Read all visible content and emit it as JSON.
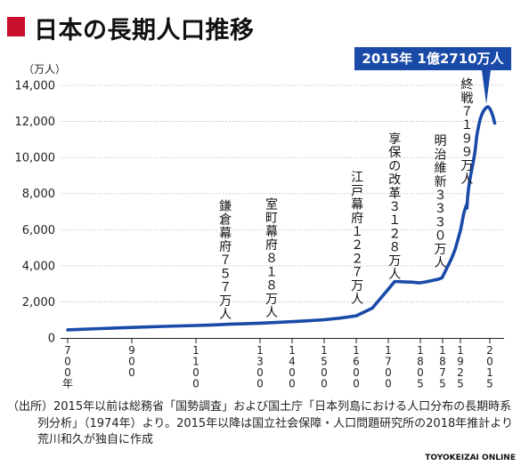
{
  "header": {
    "title": "日本の長期人口推移"
  },
  "chart_data": {
    "type": "line",
    "yunit": "（万人）",
    "ylim": [
      0,
      14000
    ],
    "yticks": [
      0,
      2000,
      4000,
      6000,
      8000,
      10000,
      12000,
      14000
    ],
    "ytick_labels": [
      "0",
      "2,000",
      "4,000",
      "6,000",
      "8,000",
      "10,000",
      "12,000",
      "14,000"
    ],
    "xticks": [
      {
        "year": 700,
        "label": "700年"
      },
      {
        "year": 900,
        "label": "900"
      },
      {
        "year": 1100,
        "label": "1100"
      },
      {
        "year": 1300,
        "label": "1300"
      },
      {
        "year": 1400,
        "label": "1400"
      },
      {
        "year": 1500,
        "label": "1500"
      },
      {
        "year": 1600,
        "label": "1600"
      },
      {
        "year": 1700,
        "label": "1700"
      },
      {
        "year": 1805,
        "label": "1805"
      },
      {
        "year": 1875,
        "label": "1875"
      },
      {
        "year": 1925,
        "label": "1925"
      },
      {
        "year": 2015,
        "label": "2015"
      }
    ],
    "x": [
      700,
      800,
      900,
      1000,
      1100,
      1150,
      1200,
      1250,
      1300,
      1350,
      1400,
      1450,
      1500,
      1550,
      1600,
      1650,
      1700,
      1721,
      1750,
      1780,
      1800,
      1820,
      1846,
      1860,
      1873,
      1880,
      1890,
      1900,
      1910,
      1920,
      1925,
      1930,
      1935,
      1940,
      1944,
      1945,
      1947,
      1950,
      1955,
      1960,
      1965,
      1970,
      1975,
      1980,
      1985,
      1990,
      1995,
      2000,
      2005,
      2008,
      2010,
      2015,
      2020,
      2025,
      2030
    ],
    "series": [
      {
        "values": [
          450,
          520,
          580,
          640,
          690,
          720,
          757,
          785,
          818,
          860,
          900,
          950,
          1010,
          1100,
          1227,
          1650,
          2700,
          3128,
          3110,
          3090,
          3050,
          3100,
          3200,
          3250,
          3330,
          3600,
          4000,
          4400,
          4900,
          5600,
          5960,
          6400,
          6900,
          7190,
          7400,
          7199,
          7800,
          8320,
          8900,
          9340,
          9830,
          10370,
          11190,
          11700,
          12100,
          12360,
          12560,
          12690,
          12780,
          12808,
          12806,
          12710,
          12530,
          12250,
          11900
        ]
      }
    ],
    "annotations": [
      {
        "year": 1192,
        "text": "鎌倉幕府７５７万人"
      },
      {
        "year": 1336,
        "text": "室町幕府８１８万人"
      },
      {
        "year": 1603,
        "text": "江戸幕府１２２７万人"
      },
      {
        "year": 1721,
        "text": "享保の改革３１２８万人"
      },
      {
        "year": 1868,
        "text": "明治維新３３３０万人"
      },
      {
        "year": 1945,
        "text": "終戦７１９９万人"
      }
    ],
    "callout": "2015年 1億2710万人",
    "colors": {
      "line": "#1a4aa8",
      "callout_bg": "#1a4aa8",
      "title_marker": "#c8102e"
    }
  },
  "footer": {
    "source": "（出所）2015年以前は総務省「国勢調査」および国土庁「日本列島における人口分布の長期時系列分析」（1974年）より。2015年以降は国立社会保障・人口問題研究所の2018年推計より荒川和久が独自に作成",
    "credit": "TOYOKEIZAI ONLINE"
  }
}
